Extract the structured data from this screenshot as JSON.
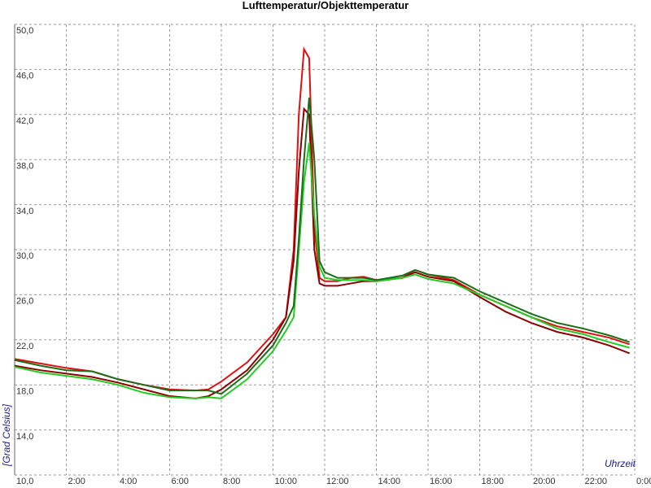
{
  "chart_data": {
    "type": "line",
    "title": "Lufttemperatur/Objekttemperatur",
    "x_label": "Uhrzeit",
    "y_label": "[Grad Celsius]",
    "x": [
      0,
      1,
      2,
      3,
      4,
      5,
      6,
      7,
      7.5,
      8,
      9,
      10,
      10.5,
      10.8,
      11,
      11.2,
      11.4,
      11.6,
      11.8,
      12,
      12.5,
      13,
      13.5,
      14,
      15,
      15.5,
      16,
      17,
      18,
      19,
      20,
      21,
      22,
      23,
      23.8
    ],
    "series": [
      {
        "color": "#e01010",
        "values": [
          20.3,
          19.9,
          19.5,
          19.2,
          18.5,
          18.0,
          17.6,
          17.5,
          17.6,
          18.3,
          20.0,
          22.5,
          24.0,
          30.0,
          42.0,
          47.8,
          47.0,
          32.0,
          27.5,
          27.2,
          27.2,
          27.5,
          27.6,
          27.3,
          27.5,
          28.2,
          27.8,
          27.3,
          26.0,
          25.0,
          24.0,
          23.2,
          22.7,
          22.2,
          21.6
        ]
      },
      {
        "color": "#8b0000",
        "values": [
          19.7,
          19.3,
          19.0,
          18.7,
          18.2,
          17.6,
          17.0,
          16.8,
          17.0,
          17.6,
          19.3,
          22.0,
          24.0,
          29.0,
          37.0,
          42.5,
          42.0,
          30.0,
          27.0,
          26.8,
          26.8,
          27.0,
          27.2,
          27.2,
          27.5,
          28.0,
          27.6,
          27.2,
          25.8,
          24.5,
          23.5,
          22.7,
          22.2,
          21.5,
          20.8
        ]
      },
      {
        "color": "#22cc22",
        "values": [
          19.6,
          19.1,
          18.8,
          18.5,
          18.0,
          17.3,
          16.9,
          16.8,
          16.9,
          16.8,
          18.5,
          21.0,
          22.8,
          24.0,
          30.0,
          36.0,
          39.5,
          33.0,
          28.5,
          27.5,
          27.3,
          27.3,
          27.3,
          27.2,
          27.5,
          27.8,
          27.4,
          27.0,
          26.0,
          25.0,
          24.0,
          23.0,
          22.5,
          21.8,
          21.3
        ]
      },
      {
        "color": "#1a6e1a",
        "values": [
          20.2,
          19.7,
          19.3,
          19.2,
          18.5,
          18.0,
          17.5,
          17.5,
          17.5,
          17.2,
          19.0,
          21.5,
          23.5,
          25.0,
          31.0,
          38.0,
          43.5,
          38.0,
          29.0,
          28.0,
          27.5,
          27.5,
          27.5,
          27.3,
          27.7,
          28.2,
          27.8,
          27.5,
          26.3,
          25.3,
          24.3,
          23.5,
          23.0,
          22.4,
          21.8
        ]
      }
    ],
    "xlim": [
      0,
      24
    ],
    "xticks": [
      {
        "value": 2,
        "label": "2:00"
      },
      {
        "value": 4,
        "label": "4:00"
      },
      {
        "value": 6,
        "label": "6:00"
      },
      {
        "value": 8,
        "label": "8:00"
      },
      {
        "value": 10,
        "label": "10:00"
      },
      {
        "value": 12,
        "label": "12:00"
      },
      {
        "value": 14,
        "label": "14:00"
      },
      {
        "value": 16,
        "label": "16:00"
      },
      {
        "value": 18,
        "label": "18:00"
      },
      {
        "value": 20,
        "label": "20:00"
      },
      {
        "value": 22,
        "label": "22:00"
      },
      {
        "value": 24,
        "label": "0:00"
      }
    ],
    "ylim": [
      10,
      50
    ],
    "yticks": [
      {
        "value": 10,
        "label": "10,0"
      },
      {
        "value": 14,
        "label": "14,0"
      },
      {
        "value": 18,
        "label": "18,0"
      },
      {
        "value": 22,
        "label": "22,0"
      },
      {
        "value": 26,
        "label": "26,0"
      },
      {
        "value": 30,
        "label": "30,0"
      },
      {
        "value": 34,
        "label": "34,0"
      },
      {
        "value": 38,
        "label": "38,0"
      },
      {
        "value": 42,
        "label": "42,0"
      },
      {
        "value": 46,
        "label": "46,0"
      },
      {
        "value": 50,
        "label": "50,0"
      }
    ],
    "grid": true
  }
}
